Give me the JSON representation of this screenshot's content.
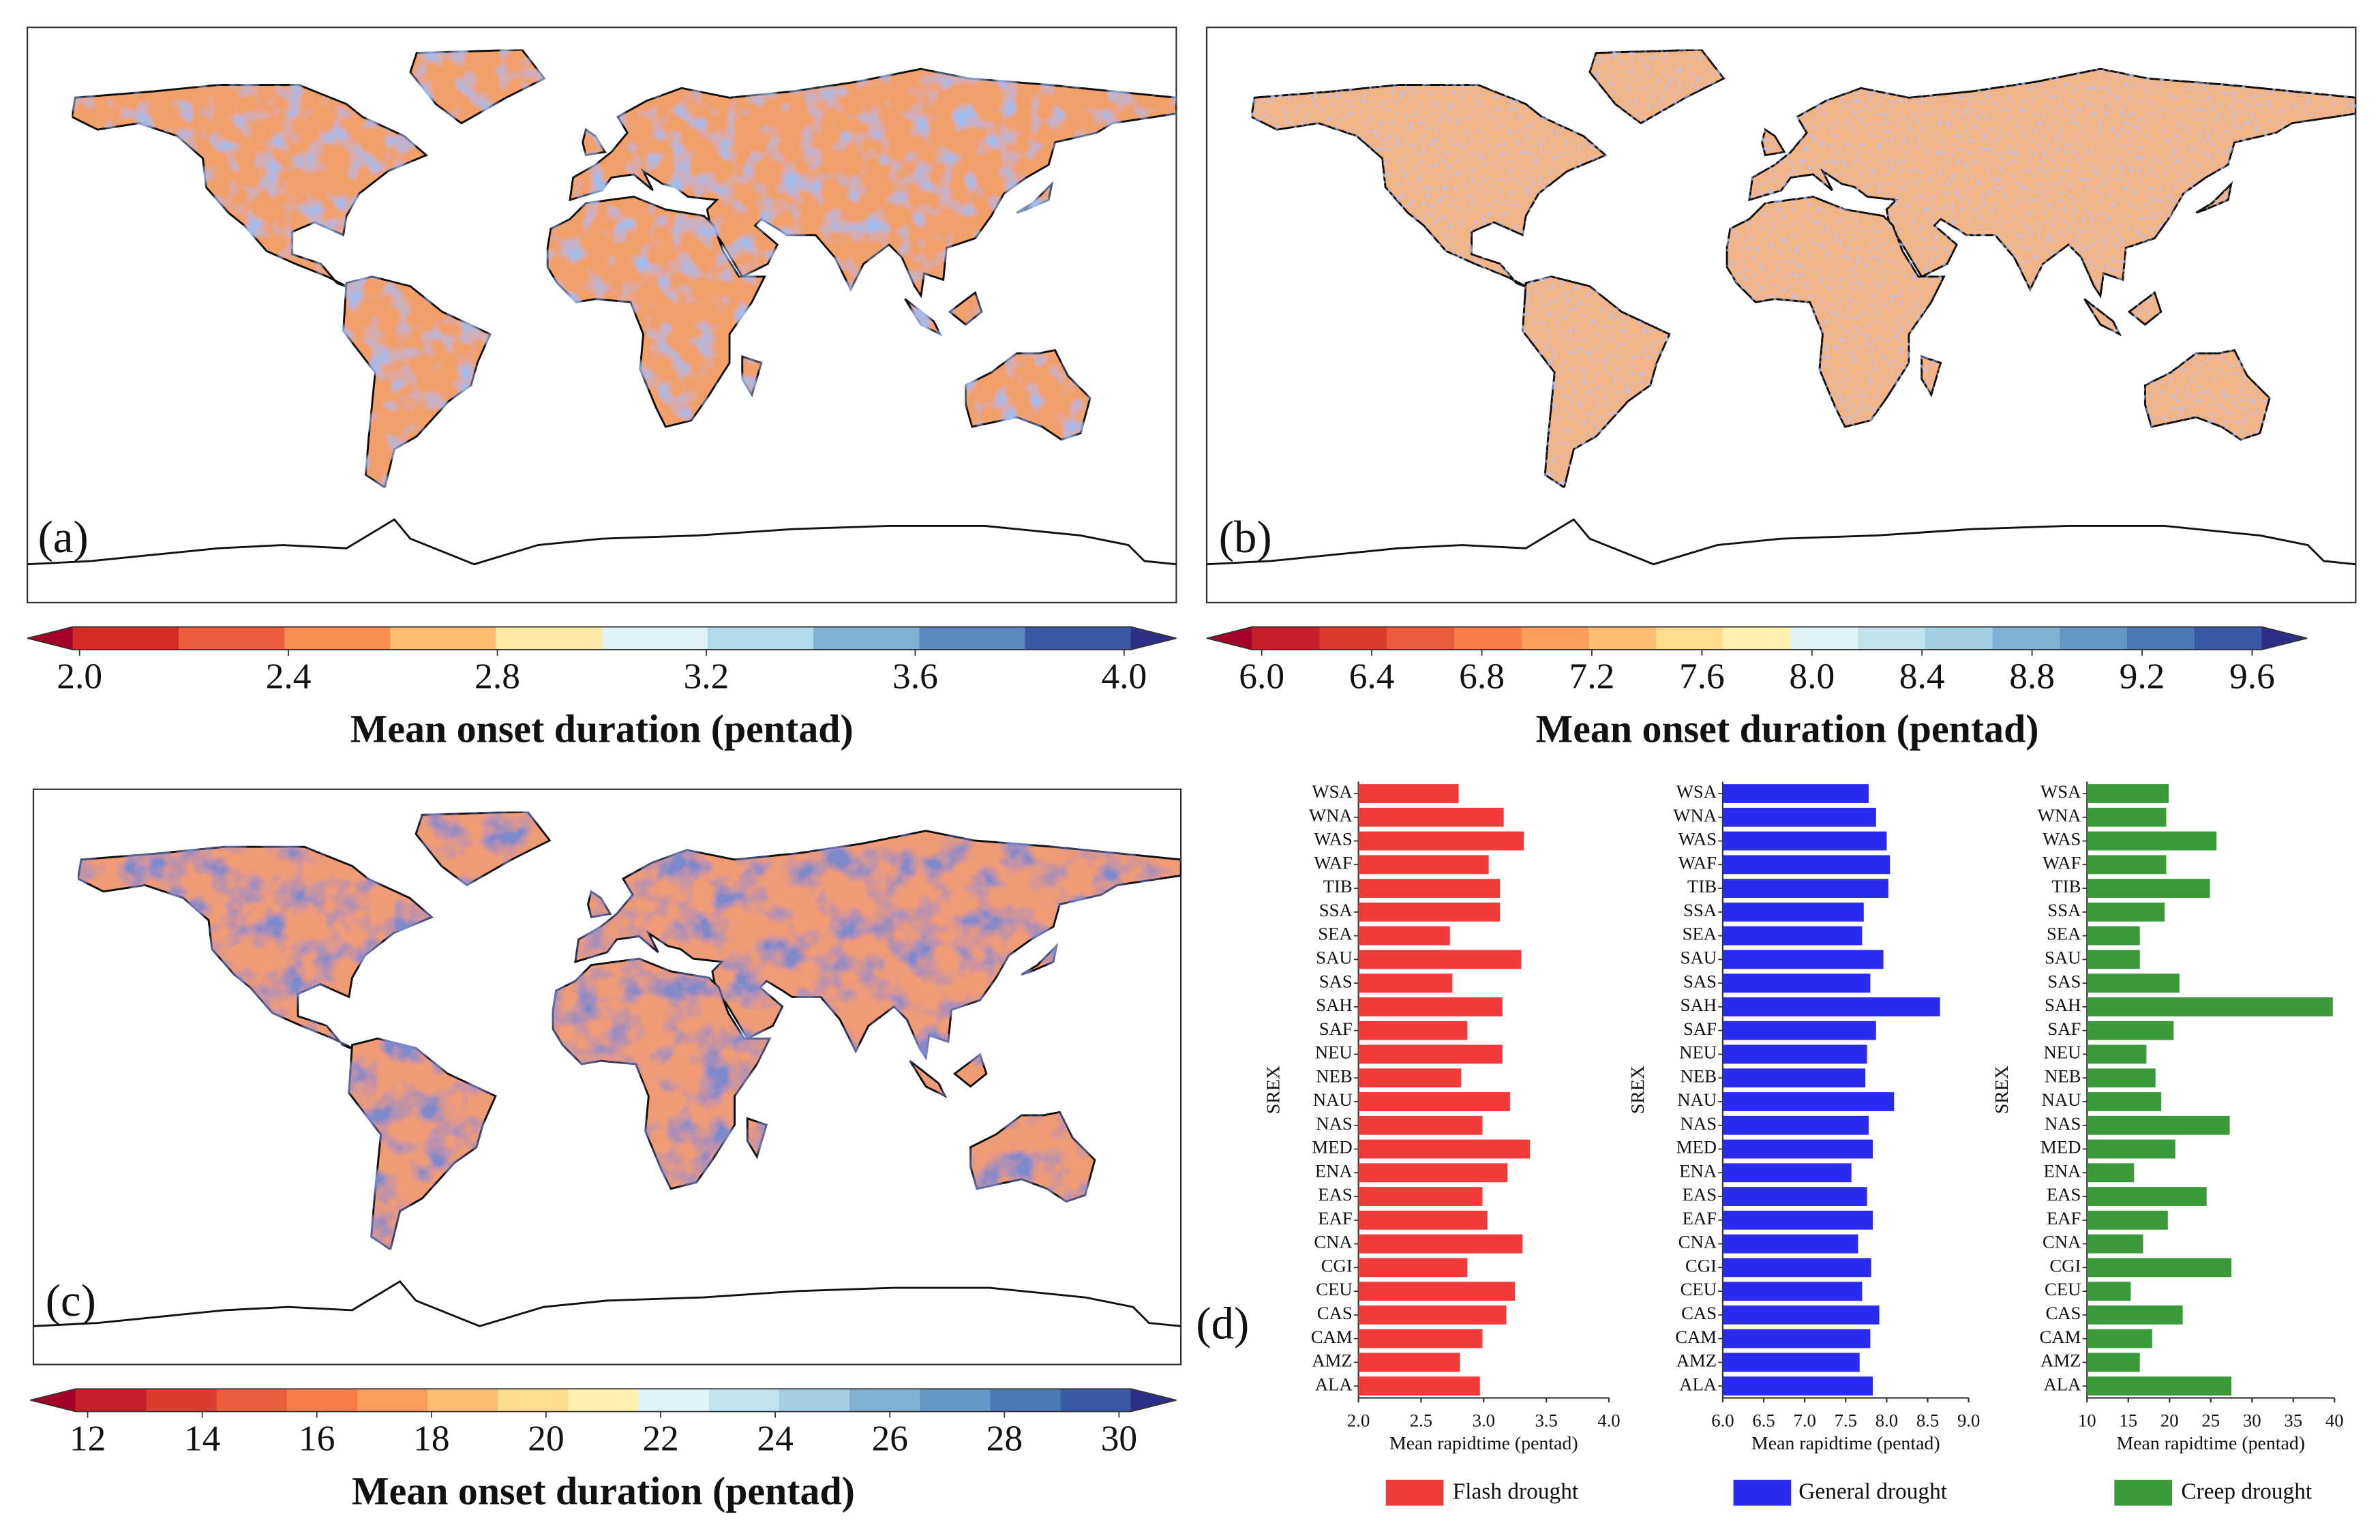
{
  "chart_data": [
    {
      "type": "map",
      "label": "(a)",
      "colorbar": {
        "label": "Mean onset duration (pentad)",
        "clim": [
          1.9,
          4.1
        ],
        "ticks": [
          {
            "value": 2,
            "label": "2.0"
          },
          2.4,
          2.8,
          3.2,
          3.6,
          {
            "value": 4,
            "label": "4.0"
          }
        ],
        "colors": [
          "#a50026",
          "#d42d27",
          "#ec5b3b",
          "#f88d52",
          "#fdbe73",
          "#fee9a4",
          "#e0f3f8",
          "#b2d9e9",
          "#80b1d3",
          "#5a89c0",
          "#3a5aa5",
          "#2d2f86"
        ]
      }
    },
    {
      "type": "map",
      "label": "(b)",
      "colorbar": {
        "label": "Mean onset duration (pentad)",
        "clim": [
          5.8,
          9.8
        ],
        "ticks": [
          {
            "value": 6,
            "label": "6.0"
          },
          6.4,
          6.8,
          7.2,
          7.6,
          {
            "value": 8,
            "label": "8.0"
          },
          8.4,
          8.8,
          9.2,
          9.6
        ],
        "colors": [
          "#a50026",
          "#c51f2a",
          "#dc3b2f",
          "#ec5b3b",
          "#f67d4a",
          "#fa9c5c",
          "#fdbe73",
          "#fedb8e",
          "#fef1b0",
          "#e0f3f8",
          "#c2e2ee",
          "#a3cfe4",
          "#80b1d3",
          "#6497c6",
          "#4a79b5",
          "#3a5aa5",
          "#2d2f86"
        ]
      }
    },
    {
      "type": "map",
      "label": "(c)",
      "colorbar": {
        "label": "Mean onset duration (pentad)",
        "clim": [
          11,
          31
        ],
        "ticks": [
          12,
          14,
          16,
          18,
          20,
          22,
          24,
          26,
          28,
          30
        ],
        "colors": [
          "#a50026",
          "#c51f2a",
          "#dc3b2f",
          "#ec5b3b",
          "#f67d4a",
          "#fa9c5c",
          "#fdbe73",
          "#fedb8e",
          "#fef1b0",
          "#e0f3f8",
          "#c2e2ee",
          "#a3cfe4",
          "#80b1d3",
          "#6497c6",
          "#4a79b5",
          "#3a5aa5",
          "#2d2f86"
        ]
      }
    },
    {
      "type": "bar",
      "orientation": "horizontal",
      "panel_label": "(d)",
      "categories": [
        "WSA",
        "WNA",
        "WAS",
        "WAF",
        "TIB",
        "SSA",
        "SEA",
        "SAU",
        "SAS",
        "SAH",
        "SAF",
        "NEU",
        "NEB",
        "NAU",
        "NAS",
        "MED",
        "ENA",
        "EAS",
        "EAF",
        "CNA",
        "CGI",
        "CEU",
        "CAS",
        "CAM",
        "AMZ",
        "ALA"
      ],
      "series": [
        {
          "name": "Flash drought",
          "color": "#f23a3a",
          "values": [
            2.8,
            3.16,
            3.32,
            3.04,
            3.13,
            3.13,
            2.73,
            3.3,
            2.75,
            3.15,
            2.87,
            3.15,
            2.82,
            3.21,
            2.99,
            3.37,
            3.19,
            2.99,
            3.03,
            3.31,
            2.87,
            3.25,
            3.18,
            2.99,
            2.81,
            2.97
          ]
        }
      ],
      "xlim": [
        2,
        4
      ],
      "xticks": [
        {
          "value": 2,
          "label": "2.0"
        },
        2.5,
        {
          "value": 3,
          "label": "3.0"
        },
        3.5,
        {
          "value": 4,
          "label": "4.0"
        }
      ],
      "xlabel": "Mean rapidtime (pentad)",
      "ylabel": "SREX"
    },
    {
      "type": "bar",
      "orientation": "horizontal",
      "categories": [
        "WSA",
        "WNA",
        "WAS",
        "WAF",
        "TIB",
        "SSA",
        "SEA",
        "SAU",
        "SAS",
        "SAH",
        "SAF",
        "NEU",
        "NEB",
        "NAU",
        "NAS",
        "MED",
        "ENA",
        "EAS",
        "EAF",
        "CNA",
        "CGI",
        "CEU",
        "CAS",
        "CAM",
        "AMZ",
        "ALA"
      ],
      "series": [
        {
          "name": "General drought",
          "color": "#2b2bf0",
          "values": [
            7.78,
            7.87,
            8.0,
            8.04,
            8.02,
            7.72,
            7.7,
            7.96,
            7.8,
            8.65,
            7.87,
            7.76,
            7.74,
            8.09,
            7.78,
            7.83,
            7.57,
            7.76,
            7.83,
            7.65,
            7.81,
            7.7,
            7.91,
            7.8,
            7.67,
            7.83
          ]
        }
      ],
      "xlim": [
        6,
        9
      ],
      "xticks": [
        {
          "value": 6,
          "label": "6.0"
        },
        6.5,
        {
          "value": 7,
          "label": "7.0"
        },
        7.5,
        {
          "value": 8,
          "label": "8.0"
        },
        8.5,
        {
          "value": 9,
          "label": "9.0"
        }
      ],
      "xlabel": "Mean rapidtime (pentad)",
      "ylabel": "SREX"
    },
    {
      "type": "bar",
      "orientation": "horizontal",
      "categories": [
        "WSA",
        "WNA",
        "WAS",
        "WAF",
        "TIB",
        "SSA",
        "SEA",
        "SAU",
        "SAS",
        "SAH",
        "SAF",
        "NEU",
        "NEB",
        "NAU",
        "NAS",
        "MED",
        "ENA",
        "EAS",
        "EAF",
        "CNA",
        "CGI",
        "CEU",
        "CAS",
        "CAM",
        "AMZ",
        "ALA"
      ],
      "series": [
        {
          "name": "Creep drought",
          "color": "#3a9a3a",
          "values": [
            19.9,
            19.6,
            25.7,
            19.6,
            24.9,
            19.4,
            16.4,
            16.4,
            21.2,
            39.8,
            20.5,
            17.2,
            18.3,
            19.0,
            27.3,
            20.7,
            15.7,
            24.5,
            19.8,
            16.8,
            27.5,
            15.3,
            21.6,
            17.9,
            16.4,
            27.5
          ]
        }
      ],
      "xlim": [
        10,
        40
      ],
      "xticks": [
        10,
        15,
        20,
        25,
        30,
        35,
        40
      ],
      "xlabel": "Mean rapidtime (pentad)",
      "ylabel": "SREX"
    }
  ]
}
